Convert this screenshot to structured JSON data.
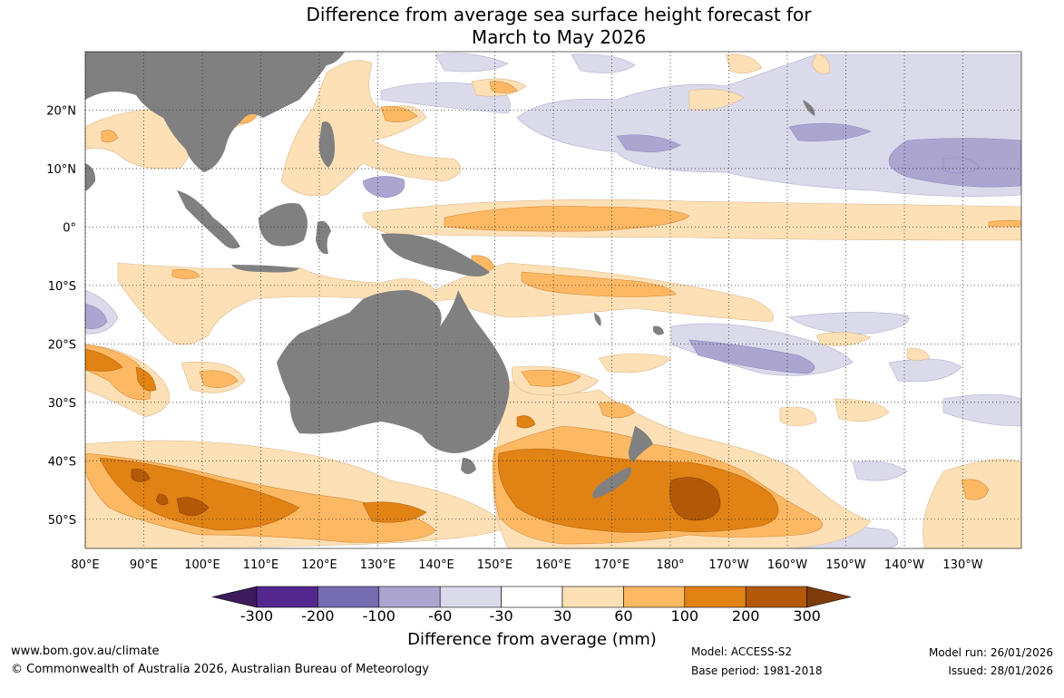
{
  "title": {
    "line1": "Difference from average sea surface height forecast for",
    "line2": "March to May 2026"
  },
  "map": {
    "lon_labels": [
      "80°E",
      "90°E",
      "100°E",
      "110°E",
      "120°E",
      "130°E",
      "140°E",
      "150°E",
      "160°E",
      "170°E",
      "180°",
      "170°W",
      "160°W",
      "150°W",
      "140°W",
      "130°W"
    ],
    "lon_values": [
      80,
      90,
      100,
      110,
      120,
      130,
      140,
      150,
      160,
      170,
      180,
      190,
      200,
      210,
      220,
      230
    ],
    "lat_labels": [
      "20°N",
      "10°N",
      "0°",
      "10°S",
      "20°S",
      "30°S",
      "40°S",
      "50°S"
    ],
    "lat_values": [
      20,
      10,
      0,
      -10,
      -20,
      -30,
      -40,
      -50
    ],
    "lon_range": [
      80,
      240
    ],
    "lat_range": [
      -55,
      30
    ]
  },
  "colorbar": {
    "ticks": [
      "-300",
      "-200",
      "-100",
      "-60",
      "-30",
      "30",
      "60",
      "100",
      "200",
      "300"
    ],
    "colors": [
      "#3c1a5c",
      "#54278f",
      "#756bb1",
      "#aba5d0",
      "#dadaeb",
      "#ffffff",
      "#fee0b6",
      "#fdb863",
      "#e08214",
      "#b35806",
      "#7f3b08"
    ],
    "title": "Difference from average (mm)"
  },
  "footer": {
    "website": "www.bom.gov.au/climate",
    "copyright": "© Commonwealth of Australia 2026, Australian Bureau of Meteorology",
    "model": "Model: ACCESS-S2",
    "base_period": "Base period: 1981-2018",
    "model_run": "Model run: 26/01/2026",
    "issued": "Issued: 28/01/2026"
  }
}
